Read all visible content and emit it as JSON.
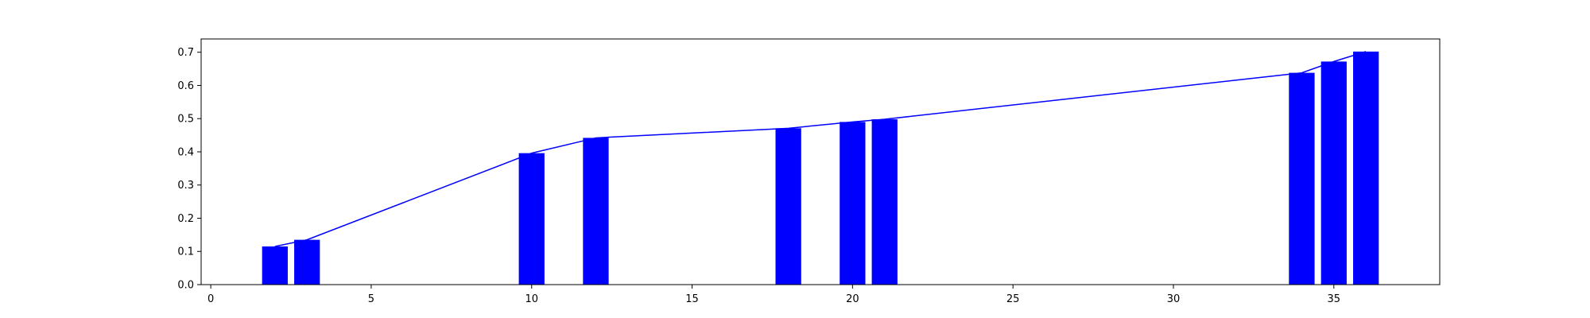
{
  "chart_data": {
    "type": "bar",
    "title": "",
    "xlabel": "",
    "ylabel": "",
    "x": [
      2,
      3,
      10,
      12,
      18,
      20,
      21,
      34,
      35,
      36
    ],
    "values": [
      0.115,
      0.135,
      0.396,
      0.442,
      0.471,
      0.49,
      0.498,
      0.638,
      0.672,
      0.702
    ],
    "bar_width": 0.8,
    "overlay_line": true,
    "xlim": [
      -0.3,
      38.3
    ],
    "ylim": [
      0,
      0.74
    ],
    "xticks": [
      0,
      5,
      10,
      15,
      20,
      25,
      30,
      35
    ],
    "yticks": [
      0.0,
      0.1,
      0.2,
      0.3,
      0.4,
      0.5,
      0.6,
      0.7
    ],
    "xtick_labels": [
      "0",
      "5",
      "10",
      "15",
      "20",
      "25",
      "30",
      "35"
    ],
    "ytick_labels": [
      "0.0",
      "0.1",
      "0.2",
      "0.3",
      "0.4",
      "0.5",
      "0.6",
      "0.7"
    ],
    "grid": false,
    "colors": {
      "bar": "#0000ff",
      "line": "#0000ff",
      "axes": "#000000"
    }
  }
}
